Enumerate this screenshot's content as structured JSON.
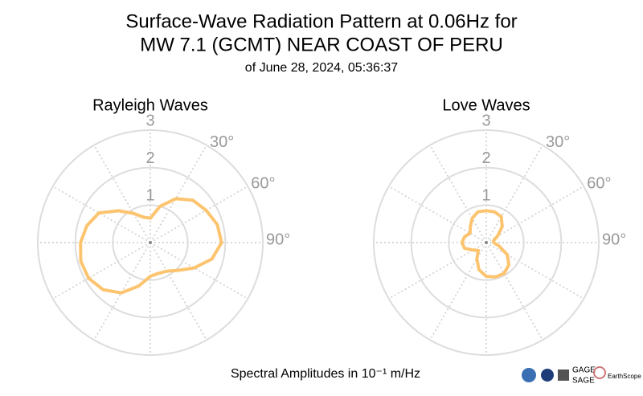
{
  "title": [
    "Surface-Wave Radiation Pattern at 0.06Hz for",
    "MW 7.1 (GCMT) NEAR COAST OF PERU"
  ],
  "subtitle": "of June 28, 2024, 05:36:37",
  "footnote": "Spectral Amplitudes in 10⁻¹ m/Hz",
  "logos": [
    "GAGE",
    "SAGE",
    "EarthScope"
  ],
  "chart_data": [
    {
      "type": "polar",
      "title": "Rayleigh Waves",
      "color": "#fdc46f",
      "theta": [
        0,
        15,
        30,
        45,
        60,
        75,
        90,
        105,
        120,
        135,
        150,
        165,
        180,
        195,
        210,
        225,
        240,
        255,
        270,
        285,
        300,
        315,
        330,
        345
      ],
      "values": [
        0.65,
        1.0,
        1.35,
        1.6,
        1.72,
        1.85,
        1.9,
        1.7,
        1.35,
        1.05,
        0.88,
        0.85,
        0.9,
        1.2,
        1.55,
        1.78,
        1.9,
        1.92,
        1.86,
        1.75,
        1.58,
        1.2,
        0.9,
        0.7
      ],
      "rlim": [
        0,
        3
      ],
      "rticks": [
        1,
        2,
        3
      ],
      "thetagrid": [
        0,
        30,
        60,
        90,
        120,
        150,
        180,
        210,
        240,
        270,
        300,
        330
      ],
      "thetaticks": [
        {
          "value": 30,
          "label": "30°"
        },
        {
          "value": 60,
          "label": "60°"
        },
        {
          "value": 90,
          "label": "90°"
        }
      ]
    },
    {
      "type": "polar",
      "title": "Love Waves",
      "color": "#fdc46f",
      "theta": [
        0,
        15,
        30,
        45,
        60,
        75,
        90,
        105,
        120,
        135,
        150,
        165,
        180,
        195,
        210,
        225,
        240,
        255,
        270,
        285,
        300,
        315,
        330,
        345
      ],
      "values": [
        0.85,
        0.85,
        0.8,
        0.6,
        0.35,
        0.2,
        0.2,
        0.35,
        0.65,
        0.85,
        0.95,
        0.95,
        0.9,
        0.75,
        0.5,
        0.3,
        0.4,
        0.6,
        0.65,
        0.6,
        0.5,
        0.6,
        0.75,
        0.85
      ],
      "rlim": [
        0,
        3
      ],
      "rticks": [
        1,
        2,
        3
      ],
      "thetagrid": [
        0,
        30,
        60,
        90,
        120,
        150,
        180,
        210,
        240,
        270,
        300,
        330
      ],
      "thetaticks": [
        {
          "value": 30,
          "label": "30°"
        },
        {
          "value": 60,
          "label": "60°"
        },
        {
          "value": 90,
          "label": "90°"
        }
      ]
    }
  ]
}
